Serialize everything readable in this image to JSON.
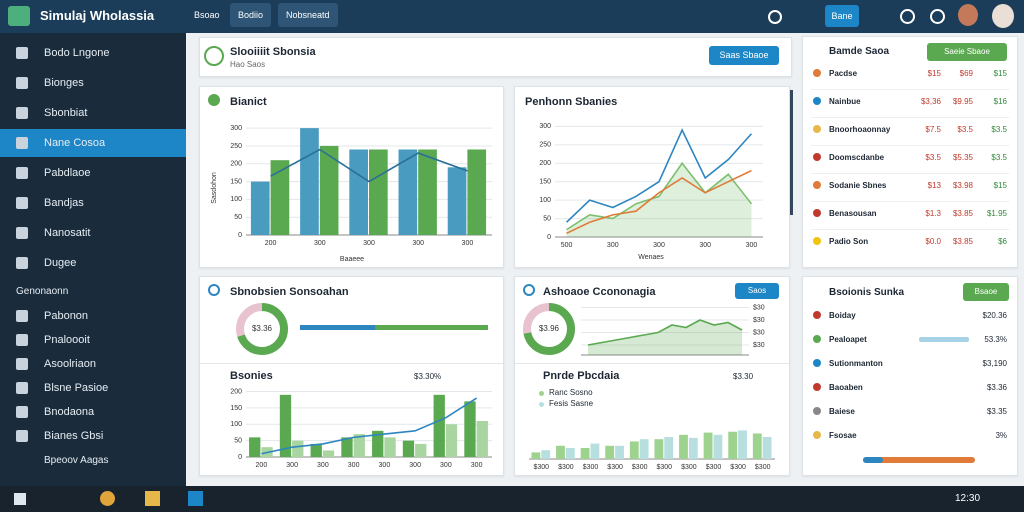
{
  "app": {
    "title": "Simulaj Wholassia",
    "tabs": [
      "Bsoao",
      "Bodiio",
      "Nobsneatd"
    ],
    "action": "Bane"
  },
  "sidebar": {
    "items": [
      "Bodo Lngone",
      "Bionges",
      "Sbonbiat",
      "Nane Cosoa",
      "Pabdlaoe",
      "Bandjas",
      "Nanosatit",
      "Dugee",
      "Genonaonn",
      "Pabonon",
      "Pnaloooit",
      "Asoolriaon",
      "Blsne Pasioe",
      "Bnodaona",
      "Bianes Gbsi"
    ],
    "active": 3,
    "footer": "Bpeoov Aagas"
  },
  "header": {
    "title": "Slooiiiit Sbonsia",
    "subtitle": "Hao Saos",
    "button": "Saas Sbaoe"
  },
  "panels": [
    {
      "title": "Bianict",
      "chart_data": {
        "type": "bar",
        "y_label": "Sasdohon",
        "x_label": "Baaeee",
        "categories": [
          "200",
          "300",
          "300",
          "300",
          "300"
        ],
        "ylim": [
          0,
          320
        ],
        "yticks": [
          0,
          50,
          100,
          150,
          200,
          250,
          300
        ],
        "series": [
          {
            "color": "#4a9bc0",
            "values": [
              150,
              300,
              240,
              240,
              190
            ]
          },
          {
            "color": "#5aa84f",
            "values": [
              210,
              250,
              240,
              240,
              240
            ]
          },
          {
            "type": "line",
            "color": "#2a6f97",
            "values": [
              165,
              240,
              150,
              230,
              180
            ]
          }
        ]
      }
    },
    {
      "title": "Penhonn Sbanies",
      "chart_data": {
        "type": "line",
        "x_label": "Wenaes",
        "categories": [
          "500",
          null,
          "300",
          null,
          "300",
          null,
          "300",
          null,
          "300"
        ],
        "ylim": [
          0,
          320
        ],
        "yticks": [
          0,
          50,
          100,
          150,
          200,
          250,
          300
        ],
        "series": [
          {
            "color": "#2e86c1",
            "values": [
              40,
              100,
              80,
              110,
              150,
              290,
              160,
              210,
              280
            ]
          },
          {
            "color": "#7cbf6e",
            "area": true,
            "values": [
              20,
              60,
              50,
              90,
              110,
              200,
              120,
              170,
              90
            ]
          },
          {
            "color": "#e07b39",
            "values": [
              10,
              40,
              60,
              70,
              120,
              160,
              120,
              150,
              180
            ]
          }
        ]
      }
    },
    {
      "title": "Sbnobsien Sonsoahan",
      "donut": {
        "center": "$3.36",
        "values": [
          70,
          30
        ],
        "colors": [
          "#5aa84f",
          "#e8c3cf"
        ]
      },
      "progress": {
        "values": [
          100,
          60
        ],
        "colors": [
          "#2e86c1",
          "#5aa84f"
        ]
      }
    },
    {
      "title": "Ashoaoe Ccononagia",
      "button": "Saos",
      "donut": {
        "center": "$3.96",
        "values": [
          72,
          28
        ],
        "colors": [
          "#5aa84f",
          "#e8c3cf"
        ]
      },
      "chart_data": {
        "type": "area",
        "categories": [
          null,
          null,
          null,
          null,
          null,
          null,
          null,
          null,
          null,
          null,
          null,
          null
        ],
        "ylim": [
          0,
          100
        ],
        "yticks": [
          {
            "value": 20,
            "label": "$30"
          },
          {
            "value": 45,
            "label": "$30"
          },
          {
            "value": 70,
            "label": "$30"
          },
          {
            "value": 95,
            "label": "$30"
          }
        ],
        "series": [
          {
            "color": "#5aa84f",
            "area": true,
            "values": [
              20,
              25,
              30,
              35,
              40,
              45,
              60,
              55,
              70,
              60,
              65,
              50
            ]
          }
        ]
      }
    },
    {
      "title": "Bsonies",
      "legend": "$3.30%",
      "chart_data": {
        "type": "bar",
        "categories": [
          "200",
          "300",
          "300",
          "300",
          "300",
          "300",
          "300",
          "300"
        ],
        "ylim": [
          0,
          220
        ],
        "yticks": [
          0,
          50,
          100,
          150,
          200
        ],
        "series": [
          {
            "color": "#5aa84f",
            "values": [
              60,
              190,
              40,
              60,
              80,
              50,
              190,
              170
            ]
          },
          {
            "color": "#a8d5a0",
            "values": [
              30,
              50,
              20,
              70,
              60,
              40,
              100,
              110
            ]
          },
          {
            "type": "line",
            "color": "#2e86c1",
            "values": [
              10,
              30,
              40,
              60,
              70,
              80,
              120,
              180
            ]
          }
        ]
      }
    },
    {
      "title": "Pnrde Pbcdaia",
      "value": "$3.30",
      "chart_data": {
        "type": "bar",
        "categories": [
          "$300",
          "$300",
          "$300",
          "$300",
          "$300",
          "$300",
          "$300",
          "$300",
          "$300",
          "$300"
        ],
        "ylim": [
          0,
          100
        ],
        "yticks": [],
        "series": [
          {
            "name": "Ranc Sosno",
            "color": "#9ed38f",
            "values": [
              15,
              30,
              25,
              30,
              40,
              45,
              55,
              60,
              62,
              58
            ]
          },
          {
            "name": "Fesis Sasne",
            "color": "#b8dfe0",
            "values": [
              20,
              25,
              35,
              30,
              45,
              50,
              48,
              55,
              65,
              50
            ]
          }
        ]
      }
    }
  ],
  "table": {
    "title": "Bamde Saoa",
    "button": "Saeie Sbaoe",
    "rows": [
      [
        "Pacdse",
        "$15",
        "$69",
        "$15"
      ],
      [
        "Nainbue",
        "$3,36",
        "$9.95",
        "$16"
      ],
      [
        "Bnoorhoaonnay",
        "$7.5",
        "$3.5",
        "$3.5"
      ],
      [
        "Doomscdanbe",
        "$3.5",
        "$5.35",
        "$3.5"
      ],
      [
        "Sodanie Sbnes",
        "$13",
        "$3.98",
        "$15"
      ],
      [
        "Benasousan",
        "$1.3",
        "$3.85",
        "$1.95"
      ],
      [
        "Padio Son",
        "$0.0",
        "$3.85",
        "$6"
      ]
    ]
  },
  "list": {
    "title": "Bsoionis Sunka",
    "button": "Bsaoe",
    "rows": [
      [
        "Boiday",
        "$20.36"
      ],
      [
        "Pealoapet",
        "53.3%"
      ],
      [
        "Sutionmanton",
        "$3,190"
      ],
      [
        "Baoaben",
        "$3.36"
      ],
      [
        "Baiese",
        "$3.35"
      ],
      [
        "Fsosae",
        "3%"
      ]
    ]
  },
  "taskbar": {
    "time": "12:30"
  }
}
